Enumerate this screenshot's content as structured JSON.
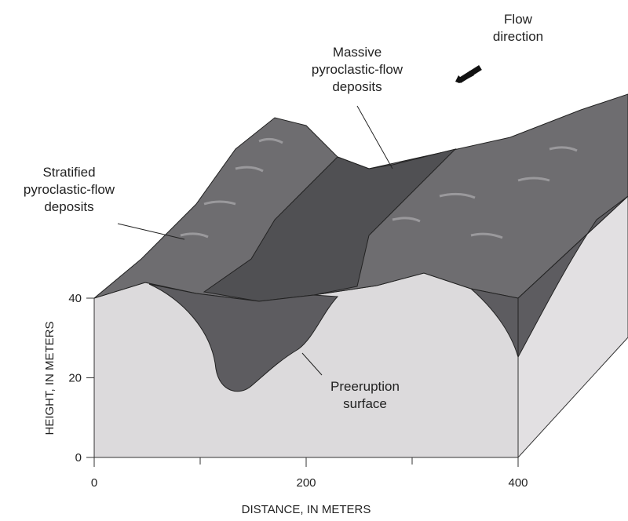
{
  "labels": {
    "flow": [
      "Flow",
      "direction"
    ],
    "massive": [
      "Massive",
      "pyroclastic-flow",
      "deposits"
    ],
    "stratified": [
      "Stratified",
      "pyroclastic-flow",
      "deposits"
    ],
    "preeruption": [
      "Preeruption",
      "surface"
    ]
  },
  "axes": {
    "x_label": "DISTANCE, IN METERS",
    "x_ticks": [
      0,
      200,
      400
    ],
    "y_label": "HEIGHT, IN METERS",
    "y_ticks": [
      0,
      20,
      40
    ]
  }
}
